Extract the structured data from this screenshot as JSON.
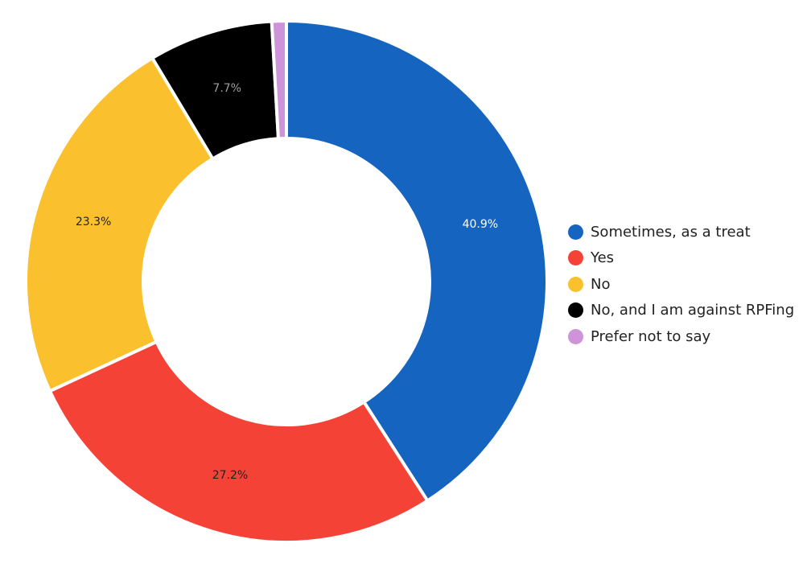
{
  "chart_data": {
    "type": "pie",
    "donut": true,
    "categories": [
      "Sometimes, as a treat",
      "Yes",
      "No",
      "No, and I am against RPFing",
      "Prefer not to say"
    ],
    "values": [
      40.9,
      27.2,
      23.3,
      7.7,
      0.9
    ],
    "data_labels": [
      "40.9%",
      "27.2%",
      "23.3%",
      "7.7%",
      ""
    ],
    "colors": [
      "#1565c0",
      "#f44336",
      "#fbc02d",
      "#000000",
      "#ce93d8"
    ],
    "label_colors": [
      "#ffffff",
      "#222222",
      "#222222",
      "#9e9e9e",
      "#222222"
    ],
    "legend_position": "right",
    "start_angle_deg": 0,
    "direction": "clockwise"
  }
}
